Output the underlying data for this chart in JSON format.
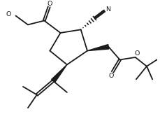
{
  "bg_color": "#ffffff",
  "line_color": "#1a1a1a",
  "lw": 1.3,
  "fig_width": 2.29,
  "fig_height": 1.63,
  "dpi": 100,
  "xlim": [
    0,
    9.5
  ],
  "ylim": [
    0,
    6.8
  ]
}
